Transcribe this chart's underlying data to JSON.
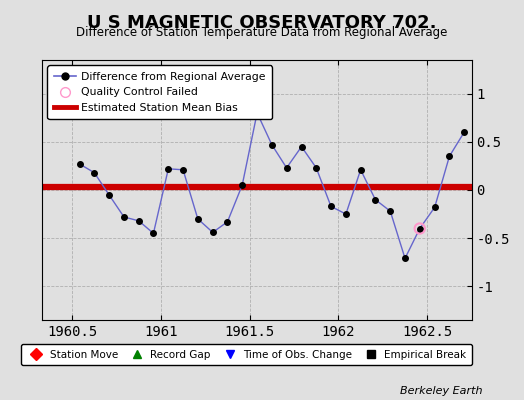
{
  "title": "U S MAGNETIC OBSERVATORY 702.",
  "subtitle": "Difference of Station Temperature Data from Regional Average",
  "xlabel_credit": "Berkeley Earth",
  "xlim": [
    1960.33,
    1962.75
  ],
  "ylim": [
    -1.35,
    1.35
  ],
  "yticks": [
    -1,
    -0.5,
    0,
    0.5,
    1
  ],
  "xticks": [
    1960.5,
    1961,
    1961.5,
    1962,
    1962.5
  ],
  "xtick_labels": [
    "1960.5",
    "1961",
    "1961.5",
    "1962",
    "1962.5"
  ],
  "bias_line": 0.03,
  "line_color": "#6666cc",
  "marker_color": "#000000",
  "bias_color": "#cc0000",
  "qc_marker_color": "#ff99cc",
  "background_color": "#e0e0e0",
  "plot_bg_color": "#e0e0e0",
  "data_x": [
    1960.542,
    1960.625,
    1960.708,
    1960.792,
    1960.875,
    1960.958,
    1961.042,
    1961.125,
    1961.208,
    1961.292,
    1961.375,
    1961.458,
    1961.542,
    1961.625,
    1961.708,
    1961.792,
    1961.875,
    1961.958,
    1962.042,
    1962.125,
    1962.208,
    1962.292,
    1962.375,
    1962.458,
    1962.542,
    1962.625,
    1962.708
  ],
  "data_y": [
    0.27,
    0.18,
    -0.05,
    -0.28,
    -0.32,
    -0.45,
    0.22,
    0.21,
    -0.3,
    -0.44,
    -0.33,
    0.05,
    0.8,
    0.47,
    0.23,
    0.45,
    0.23,
    -0.17,
    -0.25,
    0.21,
    -0.1,
    -0.22,
    -0.71,
    -0.4,
    -0.18,
    0.35,
    0.6
  ],
  "qc_fail_indices": [
    23
  ],
  "legend1_labels": [
    "Difference from Regional Average",
    "Quality Control Failed",
    "Estimated Station Mean Bias"
  ],
  "legend2_labels": [
    "Station Move",
    "Record Gap",
    "Time of Obs. Change",
    "Empirical Break"
  ]
}
